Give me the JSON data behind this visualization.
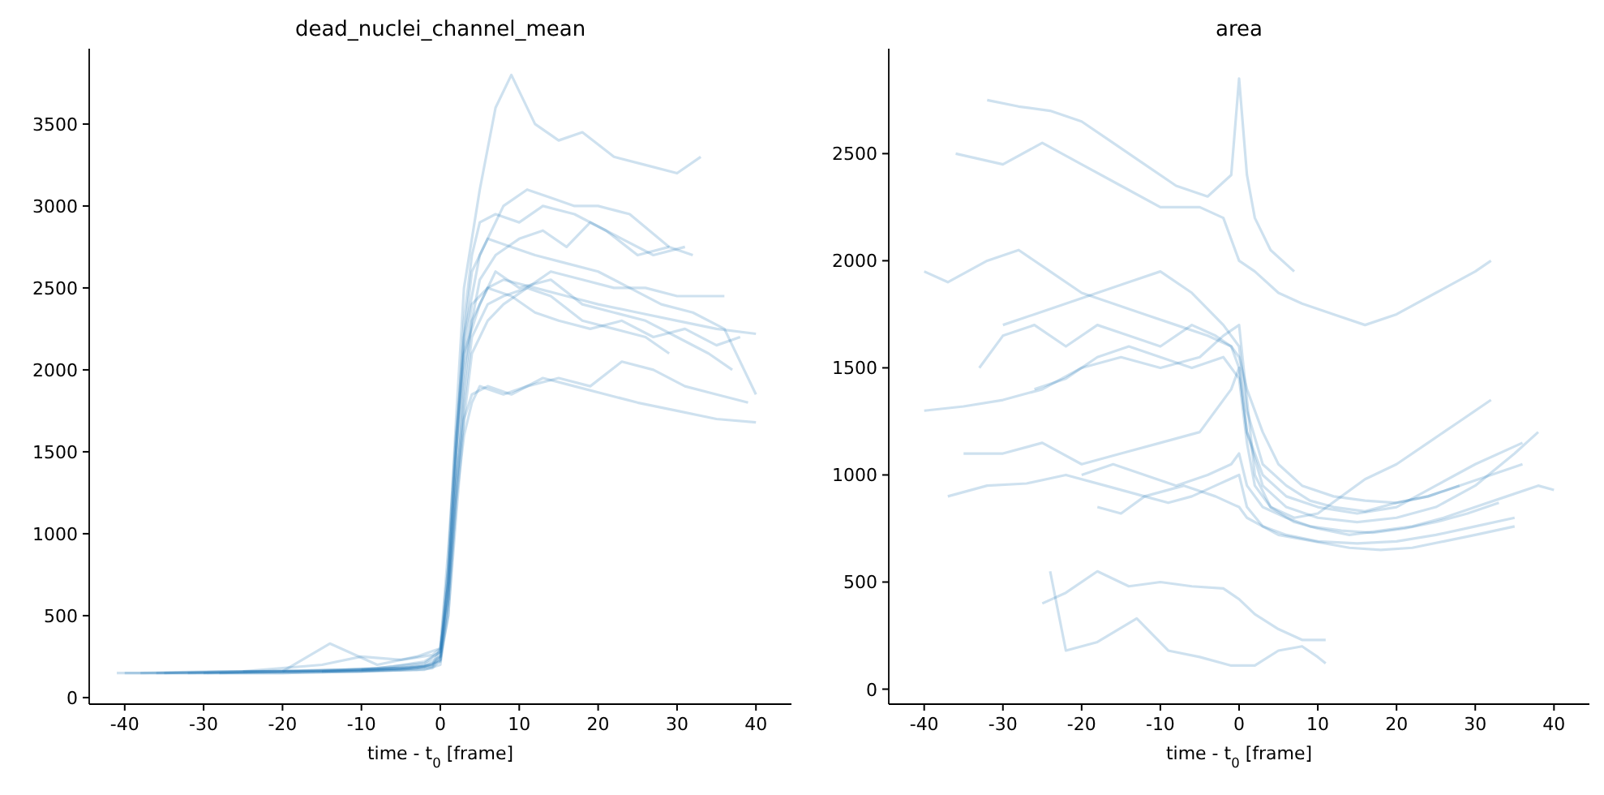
{
  "chart_data": [
    {
      "type": "line",
      "title": "dead_nuclei_channel_mean",
      "xlabel": "time - t$_{0}$ [frame]",
      "xlim": [
        -44.5,
        44.5
      ],
      "xticks": [
        -40,
        -30,
        -20,
        -10,
        0,
        10,
        20,
        30,
        40
      ],
      "ylim": [
        -40,
        3960
      ],
      "yticks": [
        0,
        500,
        1000,
        1500,
        2000,
        2500,
        3000,
        3500
      ],
      "series": [
        {
          "color": "#1f77b4",
          "x": [
            -41,
            -30,
            -20,
            -10,
            -2,
            0,
            1,
            2,
            3,
            4,
            6,
            8,
            12,
            16,
            20,
            25,
            30,
            35,
            40
          ],
          "values": [
            150,
            150,
            160,
            160,
            170,
            200,
            600,
            1400,
            2000,
            2300,
            2500,
            2550,
            2500,
            2450,
            2400,
            2350,
            2300,
            2250,
            2220
          ]
        },
        {
          "color": "#1f77b4",
          "x": [
            -35,
            -25,
            -15,
            -5,
            -1,
            0,
            1,
            2,
            3,
            5,
            7,
            9,
            12,
            15,
            18,
            22,
            26,
            30,
            33
          ],
          "values": [
            150,
            160,
            160,
            170,
            190,
            250,
            800,
            1700,
            2500,
            3100,
            3600,
            3800,
            3500,
            3400,
            3450,
            3300,
            3250,
            3200,
            3300
          ]
        },
        {
          "color": "#1f77b4",
          "x": [
            -30,
            -20,
            -10,
            -3,
            -1,
            0,
            1,
            2,
            3,
            5,
            8,
            11,
            14,
            17,
            20,
            24,
            29
          ],
          "values": [
            150,
            150,
            160,
            180,
            200,
            300,
            900,
            1600,
            2200,
            2700,
            3000,
            3100,
            3050,
            3000,
            3000,
            2950,
            2750
          ]
        },
        {
          "color": "#1f77b4",
          "x": [
            -38,
            -28,
            -18,
            -8,
            -2,
            0,
            1,
            2,
            3,
            4,
            6,
            9,
            13,
            17,
            21,
            25,
            30,
            35,
            40
          ],
          "values": [
            150,
            160,
            160,
            180,
            210,
            280,
            700,
            1300,
            1700,
            1850,
            1900,
            1850,
            1950,
            1900,
            1850,
            1800,
            1750,
            1700,
            1680
          ]
        },
        {
          "color": "#1f77b4",
          "x": [
            -25,
            -15,
            -10,
            -5,
            -1,
            0,
            1,
            2,
            3,
            5,
            7,
            10,
            14,
            18,
            22,
            26,
            30,
            34,
            37
          ],
          "values": [
            160,
            200,
            250,
            230,
            260,
            300,
            800,
            1600,
            2100,
            2400,
            2600,
            2500,
            2550,
            2400,
            2350,
            2300,
            2200,
            2100,
            2000
          ]
        },
        {
          "color": "#1f77b4",
          "x": [
            -40,
            -30,
            -20,
            -10,
            -3,
            -1,
            0,
            1,
            2,
            3,
            4,
            6,
            9,
            12,
            16,
            20,
            24,
            28,
            32,
            36,
            40
          ],
          "values": [
            150,
            150,
            150,
            160,
            170,
            180,
            230,
            700,
            1500,
            2200,
            2600,
            2800,
            2750,
            2700,
            2650,
            2600,
            2500,
            2400,
            2350,
            2250,
            1850
          ]
        },
        {
          "color": "#1f77b4",
          "x": [
            -20,
            -14,
            -8,
            -3,
            0,
            1,
            2,
            3,
            4,
            6,
            8,
            11,
            14,
            18,
            22,
            26,
            30,
            34,
            36
          ],
          "values": [
            160,
            330,
            200,
            250,
            300,
            600,
            1300,
            1800,
            2200,
            2400,
            2450,
            2500,
            2600,
            2550,
            2500,
            2500,
            2450,
            2450,
            2450
          ]
        },
        {
          "color": "#1f77b4",
          "x": [
            -15,
            -10,
            -5,
            -2,
            0,
            1,
            2,
            3,
            4,
            5,
            7,
            10,
            13,
            16,
            19,
            23,
            27,
            31
          ],
          "values": [
            160,
            170,
            180,
            200,
            250,
            500,
            1200,
            1900,
            2300,
            2550,
            2700,
            2800,
            2850,
            2750,
            2900,
            2800,
            2700,
            2750
          ]
        },
        {
          "color": "#1f77b4",
          "x": [
            -32,
            -22,
            -12,
            -6,
            -2,
            0,
            1,
            2,
            3,
            4,
            6,
            8,
            11,
            14,
            18,
            22,
            26,
            29
          ],
          "values": [
            150,
            160,
            170,
            180,
            190,
            220,
            500,
            1100,
            1700,
            2100,
            2300,
            2400,
            2500,
            2450,
            2300,
            2250,
            2200,
            2100
          ]
        },
        {
          "color": "#1f77b4",
          "x": [
            -10,
            -6,
            -2,
            0,
            1,
            2,
            3,
            4,
            5,
            7,
            10,
            13,
            17,
            21,
            25,
            29,
            32
          ],
          "values": [
            170,
            190,
            220,
            280,
            700,
            1500,
            2300,
            2700,
            2900,
            2950,
            2900,
            3000,
            2950,
            2850,
            2700,
            2750,
            2700
          ]
        },
        {
          "color": "#1f77b4",
          "x": [
            -28,
            -18,
            -8,
            -2,
            0,
            1,
            2,
            3,
            4,
            5,
            8,
            11,
            15,
            19,
            23,
            27,
            31,
            35,
            39
          ],
          "values": [
            150,
            160,
            170,
            190,
            230,
            600,
            1200,
            1600,
            1800,
            1900,
            1850,
            1900,
            1950,
            1900,
            2050,
            2000,
            1900,
            1850,
            1800
          ]
        },
        {
          "color": "#1f77b4",
          "x": [
            -36,
            -24,
            -12,
            -4,
            -1,
            0,
            1,
            2,
            3,
            4,
            6,
            9,
            12,
            15,
            19,
            23,
            27,
            31,
            35,
            38
          ],
          "values": [
            150,
            160,
            170,
            180,
            200,
            260,
            700,
            1500,
            2100,
            2400,
            2500,
            2450,
            2350,
            2300,
            2250,
            2300,
            2200,
            2250,
            2150,
            2200
          ]
        }
      ]
    },
    {
      "type": "line",
      "title": "area",
      "xlabel": "time - t$_{0}$ [frame]",
      "xlim": [
        -44.5,
        44.5
      ],
      "xticks": [
        -40,
        -30,
        -20,
        -10,
        0,
        10,
        20,
        30,
        40
      ],
      "ylim": [
        -70,
        2990
      ],
      "yticks": [
        0,
        500,
        1000,
        1500,
        2000,
        2500
      ],
      "series": [
        {
          "color": "#1f77b4",
          "x": [
            -33,
            -30,
            -26,
            -22,
            -18,
            -14,
            -10,
            -6,
            -3,
            -1,
            0,
            1,
            3,
            6,
            10,
            15,
            20,
            25,
            30,
            35,
            38
          ],
          "values": [
            1500,
            1650,
            1700,
            1600,
            1700,
            1650,
            1600,
            1700,
            1650,
            1600,
            1500,
            1200,
            950,
            850,
            800,
            780,
            800,
            850,
            950,
            1100,
            1200
          ]
        },
        {
          "color": "#1f77b4",
          "x": [
            -40,
            -35,
            -30,
            -25,
            -20,
            -15,
            -10,
            -5,
            -2,
            0,
            1,
            2,
            4,
            7,
            10,
            14,
            18,
            22,
            26,
            30,
            34,
            38,
            40
          ],
          "values": [
            1300,
            1320,
            1350,
            1400,
            1500,
            1550,
            1500,
            1550,
            1650,
            1700,
            1350,
            1000,
            850,
            780,
            750,
            720,
            740,
            760,
            800,
            850,
            900,
            950,
            930
          ]
        },
        {
          "color": "#1f77b4",
          "x": [
            -32,
            -28,
            -24,
            -20,
            -16,
            -12,
            -8,
            -4,
            -1,
            0,
            1,
            2,
            4,
            7
          ],
          "values": [
            2750,
            2720,
            2700,
            2650,
            2550,
            2450,
            2350,
            2300,
            2400,
            2850,
            2400,
            2200,
            2050,
            1950
          ]
        },
        {
          "color": "#1f77b4",
          "x": [
            -36,
            -30,
            -25,
            -20,
            -15,
            -10,
            -5,
            -2,
            0,
            2,
            5,
            8,
            12,
            16,
            20,
            25,
            30,
            32
          ],
          "values": [
            2500,
            2450,
            2550,
            2450,
            2350,
            2250,
            2250,
            2200,
            2000,
            1950,
            1850,
            1800,
            1750,
            1700,
            1750,
            1850,
            1950,
            2000
          ]
        },
        {
          "color": "#1f77b4",
          "x": [
            -37,
            -32,
            -27,
            -22,
            -17,
            -12,
            -7,
            -3,
            0,
            1,
            3,
            6,
            10,
            15,
            20,
            25,
            30,
            35
          ],
          "values": [
            900,
            950,
            960,
            1000,
            950,
            900,
            950,
            900,
            850,
            800,
            760,
            720,
            690,
            680,
            690,
            720,
            760,
            800
          ]
        },
        {
          "color": "#1f77b4",
          "x": [
            -35,
            -30,
            -25,
            -20,
            -15,
            -10,
            -5,
            -1,
            0,
            1,
            3,
            6,
            10,
            15,
            20,
            25,
            30,
            36
          ],
          "values": [
            1100,
            1100,
            1150,
            1050,
            1100,
            1150,
            1200,
            1400,
            1500,
            1200,
            1000,
            900,
            850,
            820,
            850,
            950,
            1050,
            1150
          ]
        },
        {
          "color": "#1f77b4",
          "x": [
            -25,
            -22,
            -18,
            -14,
            -10,
            -6,
            -2,
            0,
            2,
            5,
            8,
            11
          ],
          "values": [
            400,
            450,
            550,
            480,
            500,
            480,
            470,
            420,
            350,
            280,
            230,
            230
          ]
        },
        {
          "color": "#1f77b4",
          "x": [
            -24,
            -22,
            -18,
            -13,
            -9,
            -5,
            -1,
            2,
            5,
            8,
            10,
            11
          ],
          "values": [
            550,
            180,
            220,
            330,
            180,
            150,
            110,
            110,
            180,
            200,
            150,
            120
          ]
        },
        {
          "color": "#1f77b4",
          "x": [
            -40,
            -37,
            -32,
            -28,
            -24,
            -20,
            -16,
            -12,
            -8,
            -4,
            -1,
            0,
            1,
            3,
            5,
            8,
            12,
            16,
            20,
            24,
            28,
            32,
            36
          ],
          "values": [
            1950,
            1900,
            2000,
            2050,
            1950,
            1850,
            1800,
            1750,
            1700,
            1650,
            1600,
            1550,
            1400,
            1200,
            1050,
            950,
            900,
            880,
            870,
            900,
            950,
            1000,
            1050
          ]
        },
        {
          "color": "#1f77b4",
          "x": [
            -26,
            -22,
            -18,
            -14,
            -10,
            -6,
            -2,
            0,
            1,
            2,
            4,
            7,
            10,
            13,
            16,
            20,
            24,
            28,
            32
          ],
          "values": [
            1400,
            1450,
            1550,
            1600,
            1550,
            1500,
            1550,
            1450,
            1150,
            950,
            850,
            800,
            820,
            900,
            980,
            1050,
            1150,
            1250,
            1350
          ]
        },
        {
          "color": "#1f77b4",
          "x": [
            -30,
            -26,
            -22,
            -18,
            -14,
            -10,
            -6,
            -2,
            0,
            1,
            3,
            6,
            9,
            12,
            16,
            20,
            24,
            28
          ],
          "values": [
            1700,
            1750,
            1800,
            1850,
            1900,
            1950,
            1850,
            1700,
            1600,
            1300,
            1050,
            950,
            880,
            850,
            830,
            870,
            900,
            950
          ]
        },
        {
          "color": "#1f77b4",
          "x": [
            -20,
            -16,
            -12,
            -8,
            -4,
            -1,
            0,
            1,
            3,
            6,
            9,
            13,
            17,
            21,
            25,
            29,
            33
          ],
          "values": [
            1000,
            1050,
            1000,
            950,
            1000,
            1050,
            1100,
            950,
            850,
            800,
            760,
            740,
            730,
            750,
            780,
            820,
            870
          ]
        },
        {
          "color": "#1f77b4",
          "x": [
            -18,
            -15,
            -12,
            -9,
            -6,
            -3,
            0,
            1,
            3,
            5,
            8,
            11,
            14,
            18,
            22,
            26,
            30,
            35
          ],
          "values": [
            850,
            820,
            900,
            870,
            900,
            950,
            1000,
            850,
            760,
            720,
            700,
            680,
            660,
            650,
            660,
            690,
            720,
            760
          ]
        }
      ]
    }
  ]
}
